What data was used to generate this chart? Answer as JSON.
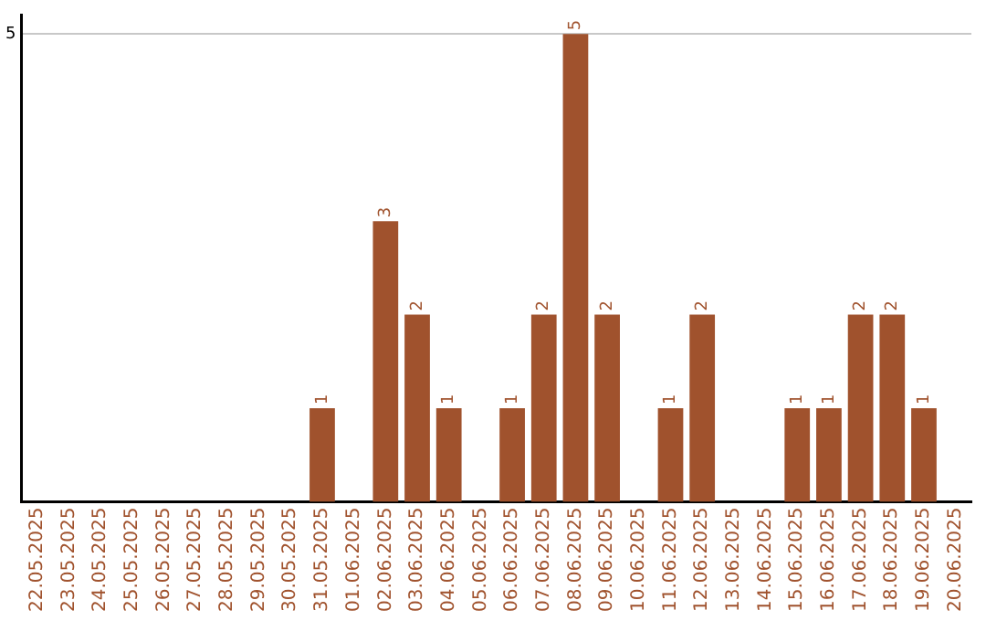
{
  "chart_data": {
    "type": "bar",
    "categories": [
      "22.05.2025",
      "23.05.2025",
      "24.05.2025",
      "25.05.2025",
      "26.05.2025",
      "27.05.2025",
      "28.05.2025",
      "29.05.2025",
      "30.05.2025",
      "31.05.2025",
      "01.06.2025",
      "02.06.2025",
      "03.06.2025",
      "04.06.2025",
      "05.06.2025",
      "06.06.2025",
      "07.06.2025",
      "08.06.2025",
      "09.06.2025",
      "10.06.2025",
      "11.06.2025",
      "12.06.2025",
      "13.06.2025",
      "14.06.2025",
      "15.06.2025",
      "16.06.2025",
      "17.06.2025",
      "18.06.2025",
      "19.06.2025",
      "20.06.2025"
    ],
    "values": [
      0,
      0,
      0,
      0,
      0,
      0,
      0,
      0,
      0,
      1,
      0,
      3,
      2,
      1,
      0,
      1,
      2,
      5,
      2,
      0,
      1,
      2,
      0,
      0,
      1,
      1,
      2,
      2,
      1,
      0
    ],
    "value_labels": [
      null,
      null,
      null,
      null,
      null,
      null,
      null,
      null,
      null,
      "1",
      null,
      "3",
      "2",
      "1",
      null,
      "1",
      "2",
      "5",
      "2",
      null,
      "1",
      "2",
      null,
      null,
      "1",
      "1",
      "2",
      "2",
      "1",
      null
    ],
    "color": "#a0522d",
    "ylim": [
      0,
      5.2
    ],
    "yticks": [
      5
    ],
    "grid": "y",
    "legend": false
  }
}
